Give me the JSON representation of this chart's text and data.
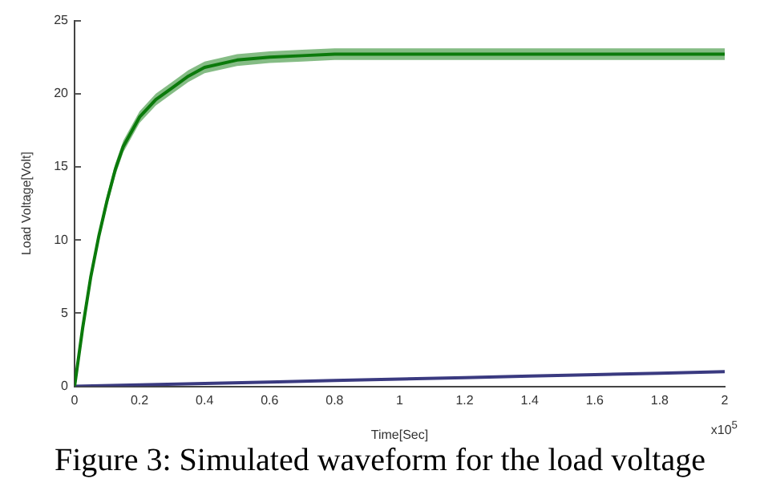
{
  "chart_data": {
    "type": "line",
    "xlabel": "Time[Sec]",
    "ylabel": "Load Voltage[Volt]",
    "xlim": [
      0,
      2
    ],
    "xticks": [
      0,
      0.2,
      0.4,
      0.6,
      0.8,
      1,
      1.2,
      1.4,
      1.6,
      1.8,
      2
    ],
    "ylim": [
      0,
      25
    ],
    "yticks": [
      0,
      5,
      10,
      15,
      20,
      25
    ],
    "grid": false,
    "legend": false,
    "marker": "none",
    "line_style": "solid",
    "series": [
      {
        "color": "#0b7a0b",
        "x": [
          0,
          0.025,
          0.05,
          0.075,
          0.1,
          0.125,
          0.15,
          0.2,
          0.25,
          0.3,
          0.35,
          0.4,
          0.5,
          0.6,
          0.7,
          0.8,
          1,
          1.2,
          1.4,
          1.6,
          1.8,
          2
        ],
        "values": [
          0,
          4,
          7.5,
          10.3,
          12.7,
          14.8,
          16.4,
          18.4,
          19.6,
          20.4,
          21.2,
          21.8,
          22.3,
          22.5,
          22.6,
          22.7,
          22.7,
          22.7,
          22.7,
          22.7,
          22.7,
          22.7
        ],
        "lower": [
          0,
          3.9,
          7.3,
          10.0,
          12.3,
          14.4,
          16.0,
          18.0,
          19.2,
          20.0,
          20.8,
          21.4,
          21.9,
          22.1,
          22.2,
          22.3,
          22.3,
          22.3,
          22.3,
          22.3,
          22.3,
          22.3
        ],
        "upper": [
          0,
          4.1,
          7.7,
          10.6,
          13.1,
          15.2,
          16.8,
          18.8,
          20.0,
          20.8,
          21.6,
          22.2,
          22.7,
          22.9,
          23.0,
          23.1,
          23.1,
          23.1,
          23.1,
          23.1,
          23.1,
          23.1
        ]
      },
      {
        "color": "#3a3a80",
        "x": [
          0,
          0.2,
          0.4,
          0.6,
          0.8,
          1,
          1.2,
          1.4,
          1.6,
          1.8,
          2
        ],
        "values": [
          0,
          0.1,
          0.2,
          0.3,
          0.4,
          0.5,
          0.6,
          0.7,
          0.8,
          0.9,
          1.0
        ]
      }
    ],
    "annotations": [
      "x10$^{5}$",
      "Figure 3: Simulated waveform for the load voltage"
    ]
  }
}
